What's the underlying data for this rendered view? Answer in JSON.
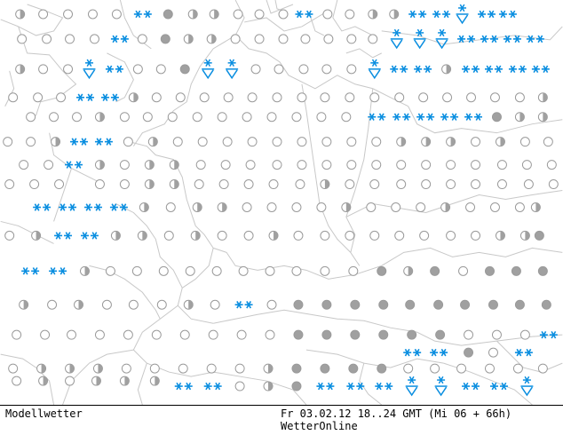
{
  "map": {
    "title": "Modellwetter",
    "valid_time": "Fr 03.02.12 18..24 GMT (Mi 06 + 66h)",
    "source": "WetterOnline",
    "colors": {
      "border": "#c8c8c8",
      "snow": "#0a8ee0",
      "cloud_fill": "#a0a0a0",
      "cloud_stroke": "#9a9a9a",
      "background": "#ffffff"
    },
    "legend_note": "",
    "symbol_types": [
      "clear",
      "partly-cloudy",
      "cloudy",
      "snow",
      "snow-showers"
    ]
  }
}
